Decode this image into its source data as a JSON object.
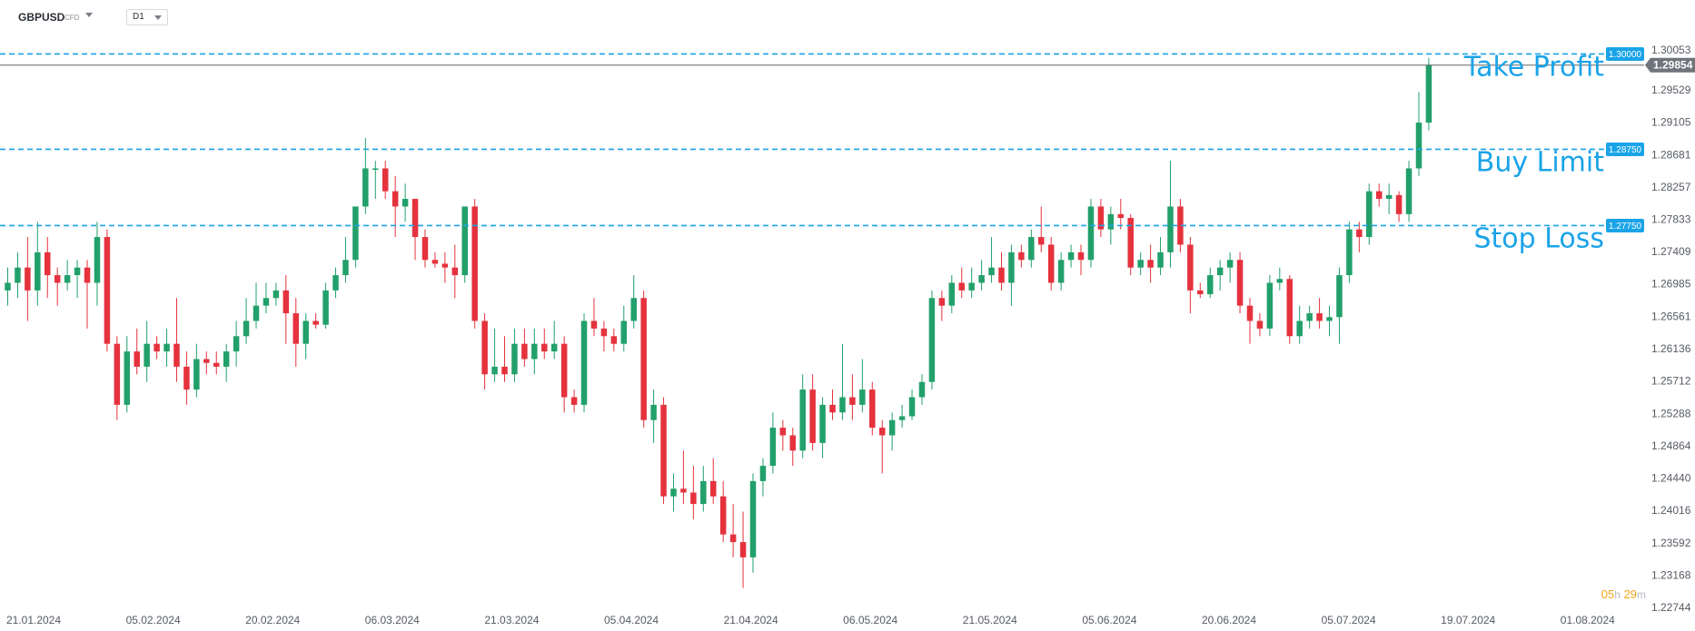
{
  "toolbar": {
    "symbol": "GBPUSD",
    "instrument_type": "CFD",
    "timeframe": "D1",
    "symbol_dropdown_icon": "chevron-down-icon",
    "timeframe_dropdown_icon": "chevron-down-icon"
  },
  "timer": {
    "hours": "05",
    "hours_unit": "h",
    "minutes": "29",
    "minutes_unit": "m"
  },
  "colors": {
    "bull": "#22a06b",
    "bear": "#e5323d",
    "level_line": "#1aa3e8",
    "price_line": "#5f6368",
    "axis_text": "#555a62"
  },
  "chart_data": {
    "type": "candlestick",
    "symbol": "GBPUSD",
    "timeframe": "D1",
    "ylim": [
      1.2264,
      1.301
    ],
    "y_ticks": [
      "1.30053",
      "1.29529",
      "1.29105",
      "1.28681",
      "1.28257",
      "1.27833",
      "1.27409",
      "1.26985",
      "1.26561",
      "1.26136",
      "1.25712",
      "1.25288",
      "1.24864",
      "1.24440",
      "1.24016",
      "1.23592",
      "1.23168",
      "1.22744"
    ],
    "x_tick_labels": [
      "21.01.2024",
      "05.02.2024",
      "20.02.2024",
      "06.03.2024",
      "21.03.2024",
      "05.04.2024",
      "21.04.2024",
      "06.05.2024",
      "21.05.2024",
      "05.06.2024",
      "20.06.2024",
      "05.07.2024",
      "19.07.2024",
      "01.08.2024"
    ],
    "current_price": 1.29854,
    "current_price_label": "1.29854",
    "levels": [
      {
        "label": "Take Profit",
        "price": 1.3,
        "price_label": "1.30000"
      },
      {
        "label": "Buy Limit",
        "price": 1.2875,
        "price_label": "1.28750"
      },
      {
        "label": "Stop Loss",
        "price": 1.2775,
        "price_label": "1.27750"
      }
    ],
    "candles": [
      {
        "o": 1.269,
        "h": 1.272,
        "l": 1.267,
        "c": 1.27
      },
      {
        "o": 1.27,
        "h": 1.274,
        "l": 1.268,
        "c": 1.272
      },
      {
        "o": 1.272,
        "h": 1.276,
        "l": 1.265,
        "c": 1.269
      },
      {
        "o": 1.269,
        "h": 1.278,
        "l": 1.267,
        "c": 1.274
      },
      {
        "o": 1.274,
        "h": 1.276,
        "l": 1.268,
        "c": 1.271
      },
      {
        "o": 1.271,
        "h": 1.272,
        "l": 1.267,
        "c": 1.27
      },
      {
        "o": 1.27,
        "h": 1.273,
        "l": 1.269,
        "c": 1.271
      },
      {
        "o": 1.271,
        "h": 1.273,
        "l": 1.268,
        "c": 1.272
      },
      {
        "o": 1.272,
        "h": 1.273,
        "l": 1.264,
        "c": 1.27
      },
      {
        "o": 1.27,
        "h": 1.278,
        "l": 1.267,
        "c": 1.276
      },
      {
        "o": 1.276,
        "h": 1.277,
        "l": 1.261,
        "c": 1.262
      },
      {
        "o": 1.262,
        "h": 1.263,
        "l": 1.252,
        "c": 1.254
      },
      {
        "o": 1.254,
        "h": 1.263,
        "l": 1.253,
        "c": 1.261
      },
      {
        "o": 1.261,
        "h": 1.264,
        "l": 1.258,
        "c": 1.259
      },
      {
        "o": 1.259,
        "h": 1.265,
        "l": 1.257,
        "c": 1.262
      },
      {
        "o": 1.262,
        "h": 1.263,
        "l": 1.26,
        "c": 1.261
      },
      {
        "o": 1.261,
        "h": 1.264,
        "l": 1.259,
        "c": 1.262
      },
      {
        "o": 1.262,
        "h": 1.268,
        "l": 1.257,
        "c": 1.259
      },
      {
        "o": 1.259,
        "h": 1.261,
        "l": 1.254,
        "c": 1.256
      },
      {
        "o": 1.256,
        "h": 1.262,
        "l": 1.255,
        "c": 1.26
      },
      {
        "o": 1.26,
        "h": 1.261,
        "l": 1.258,
        "c": 1.2595
      },
      {
        "o": 1.2595,
        "h": 1.261,
        "l": 1.258,
        "c": 1.259
      },
      {
        "o": 1.259,
        "h": 1.262,
        "l": 1.257,
        "c": 1.261
      },
      {
        "o": 1.261,
        "h": 1.265,
        "l": 1.259,
        "c": 1.263
      },
      {
        "o": 1.263,
        "h": 1.268,
        "l": 1.262,
        "c": 1.265
      },
      {
        "o": 1.265,
        "h": 1.27,
        "l": 1.264,
        "c": 1.267
      },
      {
        "o": 1.267,
        "h": 1.27,
        "l": 1.266,
        "c": 1.268
      },
      {
        "o": 1.268,
        "h": 1.27,
        "l": 1.267,
        "c": 1.269
      },
      {
        "o": 1.269,
        "h": 1.271,
        "l": 1.262,
        "c": 1.266
      },
      {
        "o": 1.266,
        "h": 1.268,
        "l": 1.259,
        "c": 1.262
      },
      {
        "o": 1.262,
        "h": 1.266,
        "l": 1.26,
        "c": 1.265
      },
      {
        "o": 1.265,
        "h": 1.266,
        "l": 1.264,
        "c": 1.2645
      },
      {
        "o": 1.2645,
        "h": 1.27,
        "l": 1.264,
        "c": 1.269
      },
      {
        "o": 1.269,
        "h": 1.272,
        "l": 1.268,
        "c": 1.271
      },
      {
        "o": 1.271,
        "h": 1.276,
        "l": 1.27,
        "c": 1.273
      },
      {
        "o": 1.273,
        "h": 1.28,
        "l": 1.272,
        "c": 1.28
      },
      {
        "o": 1.28,
        "h": 1.289,
        "l": 1.279,
        "c": 1.285
      },
      {
        "o": 1.285,
        "h": 1.286,
        "l": 1.281,
        "c": 1.285
      },
      {
        "o": 1.285,
        "h": 1.286,
        "l": 1.281,
        "c": 1.282
      },
      {
        "o": 1.282,
        "h": 1.284,
        "l": 1.276,
        "c": 1.28
      },
      {
        "o": 1.28,
        "h": 1.283,
        "l": 1.278,
        "c": 1.281
      },
      {
        "o": 1.281,
        "h": 1.281,
        "l": 1.273,
        "c": 1.276
      },
      {
        "o": 1.276,
        "h": 1.277,
        "l": 1.272,
        "c": 1.273
      },
      {
        "o": 1.273,
        "h": 1.274,
        "l": 1.272,
        "c": 1.2725
      },
      {
        "o": 1.2725,
        "h": 1.274,
        "l": 1.27,
        "c": 1.272
      },
      {
        "o": 1.272,
        "h": 1.275,
        "l": 1.268,
        "c": 1.271
      },
      {
        "o": 1.271,
        "h": 1.28,
        "l": 1.27,
        "c": 1.28
      },
      {
        "o": 1.28,
        "h": 1.281,
        "l": 1.264,
        "c": 1.265
      },
      {
        "o": 1.265,
        "h": 1.266,
        "l": 1.256,
        "c": 1.258
      },
      {
        "o": 1.258,
        "h": 1.264,
        "l": 1.257,
        "c": 1.259
      },
      {
        "o": 1.259,
        "h": 1.263,
        "l": 1.257,
        "c": 1.258
      },
      {
        "o": 1.258,
        "h": 1.264,
        "l": 1.257,
        "c": 1.262
      },
      {
        "o": 1.262,
        "h": 1.264,
        "l": 1.259,
        "c": 1.26
      },
      {
        "o": 1.26,
        "h": 1.264,
        "l": 1.258,
        "c": 1.262
      },
      {
        "o": 1.262,
        "h": 1.264,
        "l": 1.26,
        "c": 1.261
      },
      {
        "o": 1.261,
        "h": 1.265,
        "l": 1.26,
        "c": 1.262
      },
      {
        "o": 1.262,
        "h": 1.263,
        "l": 1.253,
        "c": 1.255
      },
      {
        "o": 1.255,
        "h": 1.256,
        "l": 1.253,
        "c": 1.254
      },
      {
        "o": 1.254,
        "h": 1.266,
        "l": 1.253,
        "c": 1.265
      },
      {
        "o": 1.265,
        "h": 1.268,
        "l": 1.263,
        "c": 1.264
      },
      {
        "o": 1.264,
        "h": 1.265,
        "l": 1.261,
        "c": 1.263
      },
      {
        "o": 1.263,
        "h": 1.264,
        "l": 1.261,
        "c": 1.262
      },
      {
        "o": 1.262,
        "h": 1.267,
        "l": 1.261,
        "c": 1.265
      },
      {
        "o": 1.265,
        "h": 1.271,
        "l": 1.264,
        "c": 1.268
      },
      {
        "o": 1.268,
        "h": 1.269,
        "l": 1.251,
        "c": 1.252
      },
      {
        "o": 1.252,
        "h": 1.256,
        "l": 1.249,
        "c": 1.254
      },
      {
        "o": 1.254,
        "h": 1.255,
        "l": 1.241,
        "c": 1.242
      },
      {
        "o": 1.242,
        "h": 1.245,
        "l": 1.24,
        "c": 1.243
      },
      {
        "o": 1.243,
        "h": 1.248,
        "l": 1.241,
        "c": 1.2425
      },
      {
        "o": 1.2425,
        "h": 1.246,
        "l": 1.239,
        "c": 1.241
      },
      {
        "o": 1.241,
        "h": 1.246,
        "l": 1.24,
        "c": 1.244
      },
      {
        "o": 1.244,
        "h": 1.247,
        "l": 1.241,
        "c": 1.242
      },
      {
        "o": 1.242,
        "h": 1.244,
        "l": 1.236,
        "c": 1.237
      },
      {
        "o": 1.237,
        "h": 1.241,
        "l": 1.234,
        "c": 1.236
      },
      {
        "o": 1.236,
        "h": 1.24,
        "l": 1.23,
        "c": 1.234
      },
      {
        "o": 1.234,
        "h": 1.245,
        "l": 1.232,
        "c": 1.244
      },
      {
        "o": 1.244,
        "h": 1.247,
        "l": 1.242,
        "c": 1.246
      },
      {
        "o": 1.246,
        "h": 1.253,
        "l": 1.245,
        "c": 1.251
      },
      {
        "o": 1.251,
        "h": 1.252,
        "l": 1.248,
        "c": 1.25
      },
      {
        "o": 1.25,
        "h": 1.251,
        "l": 1.246,
        "c": 1.248
      },
      {
        "o": 1.248,
        "h": 1.258,
        "l": 1.247,
        "c": 1.256
      },
      {
        "o": 1.256,
        "h": 1.258,
        "l": 1.248,
        "c": 1.249
      },
      {
        "o": 1.249,
        "h": 1.255,
        "l": 1.247,
        "c": 1.254
      },
      {
        "o": 1.254,
        "h": 1.256,
        "l": 1.252,
        "c": 1.253
      },
      {
        "o": 1.253,
        "h": 1.262,
        "l": 1.252,
        "c": 1.255
      },
      {
        "o": 1.255,
        "h": 1.258,
        "l": 1.252,
        "c": 1.254
      },
      {
        "o": 1.254,
        "h": 1.26,
        "l": 1.253,
        "c": 1.256
      },
      {
        "o": 1.256,
        "h": 1.257,
        "l": 1.25,
        "c": 1.251
      },
      {
        "o": 1.251,
        "h": 1.252,
        "l": 1.245,
        "c": 1.25
      },
      {
        "o": 1.25,
        "h": 1.253,
        "l": 1.248,
        "c": 1.252
      },
      {
        "o": 1.252,
        "h": 1.254,
        "l": 1.251,
        "c": 1.2525
      },
      {
        "o": 1.2525,
        "h": 1.256,
        "l": 1.252,
        "c": 1.255
      },
      {
        "o": 1.255,
        "h": 1.258,
        "l": 1.254,
        "c": 1.257
      },
      {
        "o": 1.257,
        "h": 1.269,
        "l": 1.256,
        "c": 1.268
      },
      {
        "o": 1.268,
        "h": 1.269,
        "l": 1.265,
        "c": 1.267
      },
      {
        "o": 1.267,
        "h": 1.271,
        "l": 1.266,
        "c": 1.27
      },
      {
        "o": 1.27,
        "h": 1.272,
        "l": 1.268,
        "c": 1.269
      },
      {
        "o": 1.269,
        "h": 1.272,
        "l": 1.268,
        "c": 1.27
      },
      {
        "o": 1.27,
        "h": 1.273,
        "l": 1.269,
        "c": 1.271
      },
      {
        "o": 1.271,
        "h": 1.276,
        "l": 1.27,
        "c": 1.272
      },
      {
        "o": 1.272,
        "h": 1.274,
        "l": 1.269,
        "c": 1.27
      },
      {
        "o": 1.27,
        "h": 1.275,
        "l": 1.267,
        "c": 1.274
      },
      {
        "o": 1.274,
        "h": 1.275,
        "l": 1.272,
        "c": 1.273
      },
      {
        "o": 1.273,
        "h": 1.277,
        "l": 1.272,
        "c": 1.276
      },
      {
        "o": 1.276,
        "h": 1.28,
        "l": 1.274,
        "c": 1.275
      },
      {
        "o": 1.275,
        "h": 1.276,
        "l": 1.269,
        "c": 1.27
      },
      {
        "o": 1.27,
        "h": 1.274,
        "l": 1.269,
        "c": 1.273
      },
      {
        "o": 1.273,
        "h": 1.275,
        "l": 1.272,
        "c": 1.274
      },
      {
        "o": 1.274,
        "h": 1.275,
        "l": 1.271,
        "c": 1.273
      },
      {
        "o": 1.273,
        "h": 1.281,
        "l": 1.272,
        "c": 1.28
      },
      {
        "o": 1.28,
        "h": 1.281,
        "l": 1.276,
        "c": 1.277
      },
      {
        "o": 1.277,
        "h": 1.28,
        "l": 1.275,
        "c": 1.279
      },
      {
        "o": 1.279,
        "h": 1.281,
        "l": 1.277,
        "c": 1.2785
      },
      {
        "o": 1.2785,
        "h": 1.279,
        "l": 1.271,
        "c": 1.272
      },
      {
        "o": 1.272,
        "h": 1.274,
        "l": 1.271,
        "c": 1.273
      },
      {
        "o": 1.273,
        "h": 1.275,
        "l": 1.27,
        "c": 1.272
      },
      {
        "o": 1.272,
        "h": 1.276,
        "l": 1.271,
        "c": 1.274
      },
      {
        "o": 1.274,
        "h": 1.286,
        "l": 1.272,
        "c": 1.28
      },
      {
        "o": 1.28,
        "h": 1.281,
        "l": 1.274,
        "c": 1.275
      },
      {
        "o": 1.275,
        "h": 1.276,
        "l": 1.266,
        "c": 1.269
      },
      {
        "o": 1.269,
        "h": 1.27,
        "l": 1.268,
        "c": 1.2685
      },
      {
        "o": 1.2685,
        "h": 1.272,
        "l": 1.268,
        "c": 1.271
      },
      {
        "o": 1.271,
        "h": 1.273,
        "l": 1.269,
        "c": 1.272
      },
      {
        "o": 1.272,
        "h": 1.274,
        "l": 1.27,
        "c": 1.273
      },
      {
        "o": 1.273,
        "h": 1.274,
        "l": 1.266,
        "c": 1.267
      },
      {
        "o": 1.267,
        "h": 1.268,
        "l": 1.262,
        "c": 1.265
      },
      {
        "o": 1.265,
        "h": 1.266,
        "l": 1.263,
        "c": 1.264
      },
      {
        "o": 1.264,
        "h": 1.271,
        "l": 1.263,
        "c": 1.27
      },
      {
        "o": 1.27,
        "h": 1.272,
        "l": 1.269,
        "c": 1.2705
      },
      {
        "o": 1.2705,
        "h": 1.271,
        "l": 1.262,
        "c": 1.263
      },
      {
        "o": 1.263,
        "h": 1.267,
        "l": 1.262,
        "c": 1.265
      },
      {
        "o": 1.265,
        "h": 1.267,
        "l": 1.264,
        "c": 1.266
      },
      {
        "o": 1.266,
        "h": 1.268,
        "l": 1.264,
        "c": 1.265
      },
      {
        "o": 1.265,
        "h": 1.267,
        "l": 1.263,
        "c": 1.2655
      },
      {
        "o": 1.2655,
        "h": 1.272,
        "l": 1.262,
        "c": 1.271
      },
      {
        "o": 1.271,
        "h": 1.278,
        "l": 1.27,
        "c": 1.277
      },
      {
        "o": 1.277,
        "h": 1.278,
        "l": 1.274,
        "c": 1.276
      },
      {
        "o": 1.276,
        "h": 1.283,
        "l": 1.275,
        "c": 1.282
      },
      {
        "o": 1.282,
        "h": 1.283,
        "l": 1.28,
        "c": 1.281
      },
      {
        "o": 1.281,
        "h": 1.283,
        "l": 1.279,
        "c": 1.2815
      },
      {
        "o": 1.2815,
        "h": 1.282,
        "l": 1.278,
        "c": 1.279
      },
      {
        "o": 1.279,
        "h": 1.286,
        "l": 1.278,
        "c": 1.285
      },
      {
        "o": 1.285,
        "h": 1.295,
        "l": 1.284,
        "c": 1.291
      },
      {
        "o": 1.291,
        "h": 1.2995,
        "l": 1.29,
        "c": 1.2985
      }
    ]
  }
}
